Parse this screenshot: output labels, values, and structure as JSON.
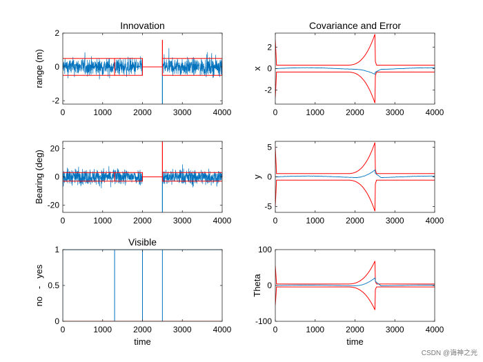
{
  "watermark": "CSDN @诲神之光",
  "colors": {
    "noise": "#0072BD",
    "bound": "#FF0000",
    "visible": "#0072BD",
    "invisible": "#D95319"
  },
  "chart_data": [
    {
      "id": "innovation-range",
      "type": "line",
      "title": "Innovation",
      "xlabel": "",
      "ylabel": "range (m)",
      "xlim": [
        0,
        4000
      ],
      "ylim": [
        -2.2,
        2
      ],
      "xticks": [
        "0",
        "1000",
        "2000",
        "3000",
        "4000"
      ],
      "yticks": [
        "-2",
        "0",
        "2"
      ],
      "noise_segments": [
        [
          0,
          2000
        ],
        [
          2500,
          4000
        ]
      ],
      "noise_amplitude": 0.55,
      "spikes": [
        {
          "x": 2500,
          "y": -2.2
        },
        {
          "x": 2500,
          "y": 1.6
        }
      ],
      "bound_levels": [
        0.5,
        -0.5
      ],
      "bound_segments": [
        [
          0,
          1300
        ],
        [
          1300,
          2000
        ],
        [
          2500,
          4000
        ]
      ],
      "bound_gap_value": 0.0
    },
    {
      "id": "covariance-x",
      "type": "line",
      "title": "Covariance and Error",
      "xlabel": "",
      "ylabel": "x",
      "xlim": [
        0,
        4000
      ],
      "ylim": [
        -3.3,
        3.3
      ],
      "xticks": [
        "0",
        "1000",
        "2000",
        "3000",
        "4000"
      ],
      "yticks": [
        "-2",
        "0",
        "2"
      ],
      "bound_base": 0.32,
      "bound_peak": 3.2,
      "error_peak": -0.45
    },
    {
      "id": "innovation-bearing",
      "type": "line",
      "title": "",
      "xlabel": "",
      "ylabel": "Bearing (deg)",
      "xlim": [
        0,
        4000
      ],
      "ylim": [
        -25,
        25
      ],
      "xticks": [
        "0",
        "1000",
        "2000",
        "3000",
        "4000"
      ],
      "yticks": [
        "-20",
        "0",
        "20"
      ],
      "noise_segments": [
        [
          0,
          2000
        ],
        [
          2500,
          4000
        ]
      ],
      "noise_amplitude": 6,
      "spikes": [
        {
          "x": 2500,
          "y": -25
        },
        {
          "x": 2500,
          "y": 25
        }
      ],
      "bound_levels": [
        3,
        -3
      ],
      "bound_segments": [
        [
          0,
          1300
        ],
        [
          1300,
          2000
        ],
        [
          2500,
          4000
        ]
      ],
      "bound_gap_value": 0.0
    },
    {
      "id": "covariance-y",
      "type": "line",
      "title": "",
      "xlabel": "",
      "ylabel": "y",
      "xlim": [
        0,
        4000
      ],
      "ylim": [
        -6,
        6
      ],
      "xticks": [
        "0",
        "1000",
        "2000",
        "3000",
        "4000"
      ],
      "yticks": [
        "-5",
        "0",
        "5"
      ],
      "bound_base": 0.55,
      "bound_peak": 5.8,
      "error_peak": 1.3
    },
    {
      "id": "visible",
      "type": "line",
      "title": "Visible",
      "xlabel": "time",
      "ylabel": "no   -   yes",
      "xlim": [
        0,
        4000
      ],
      "ylim": [
        0,
        1
      ],
      "xticks": [
        "0",
        "1000",
        "2000",
        "3000",
        "4000"
      ],
      "yticks": [
        "0",
        "0.5",
        "1"
      ],
      "visible_intervals": [
        [
          0,
          1300
        ],
        [
          1300,
          2000
        ],
        [
          2000,
          2500
        ],
        [
          2500,
          4000
        ]
      ],
      "dropouts": [
        1300,
        2000,
        2500
      ]
    },
    {
      "id": "covariance-theta",
      "type": "line",
      "title": "",
      "xlabel": "time",
      "ylabel": "Theta",
      "xlim": [
        0,
        4000
      ],
      "ylim": [
        -100,
        100
      ],
      "xticks": [
        "0",
        "1000",
        "2000",
        "3000",
        "4000"
      ],
      "yticks": [
        "-100",
        "0",
        "100"
      ],
      "bound_base": 4,
      "bound_peak": 68,
      "error_peak": 22
    }
  ]
}
